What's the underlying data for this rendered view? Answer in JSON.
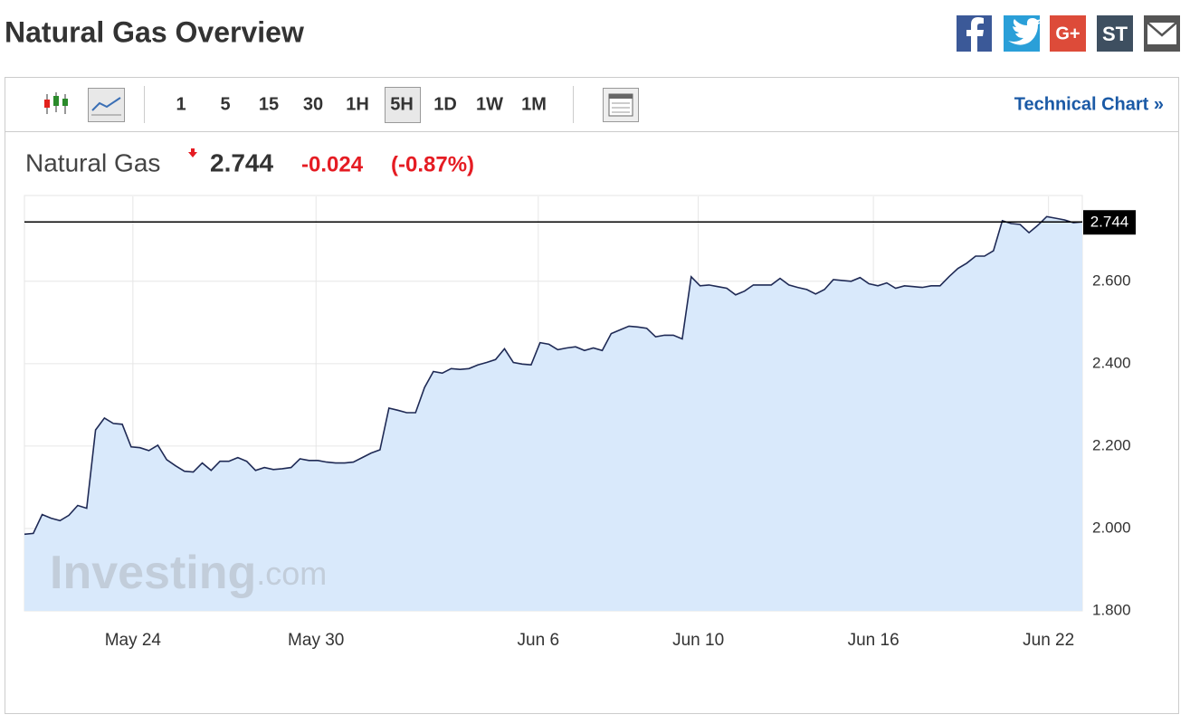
{
  "header": {
    "title": "Natural Gas Overview",
    "share": [
      "G+",
      "ST"
    ]
  },
  "toolbar": {
    "intervals": [
      "1",
      "5",
      "15",
      "30",
      "1H",
      "5H",
      "1D",
      "1W",
      "1M"
    ],
    "link": "Technical Chart »"
  },
  "quote": {
    "name": "Natural Gas",
    "price": 2.744,
    "change": -0.024,
    "change_pct": "(-0.87%)"
  },
  "chart_data": {
    "type": "area",
    "values": [
      1.986,
      1.988,
      2.034,
      2.025,
      2.019,
      2.032,
      2.056,
      2.049,
      2.239,
      2.268,
      2.255,
      2.253,
      2.198,
      2.196,
      2.189,
      2.202,
      2.167,
      2.152,
      2.139,
      2.137,
      2.159,
      2.141,
      2.163,
      2.163,
      2.172,
      2.163,
      2.141,
      2.148,
      2.143,
      2.145,
      2.148,
      2.169,
      2.165,
      2.165,
      2.161,
      2.159,
      2.159,
      2.161,
      2.172,
      2.183,
      2.191,
      2.292,
      2.287,
      2.281,
      2.281,
      2.342,
      2.381,
      2.377,
      2.388,
      2.386,
      2.388,
      2.397,
      2.403,
      2.41,
      2.436,
      2.403,
      2.399,
      2.397,
      2.451,
      2.447,
      2.434,
      2.438,
      2.441,
      2.432,
      2.438,
      2.432,
      2.473,
      2.482,
      2.491,
      2.489,
      2.486,
      2.465,
      2.469,
      2.469,
      2.46,
      2.611,
      2.589,
      2.591,
      2.587,
      2.583,
      2.567,
      2.576,
      2.591,
      2.591,
      2.591,
      2.607,
      2.591,
      2.585,
      2.58,
      2.569,
      2.58,
      2.604,
      2.602,
      2.6,
      2.609,
      2.594,
      2.589,
      2.596,
      2.583,
      2.589,
      2.587,
      2.585,
      2.589,
      2.589,
      2.611,
      2.631,
      2.644,
      2.661,
      2.661,
      2.674,
      2.747,
      2.74,
      2.738,
      2.718,
      2.736,
      2.757,
      2.753,
      2.749,
      2.742,
      2.744
    ],
    "color": "#1f2a55",
    "fill": "#d9e9fb",
    "xlim": [
      0,
      119
    ],
    "xticks": [
      {
        "value": 12.2,
        "label": "May 24"
      },
      {
        "value": 32.8,
        "label": "May 30"
      },
      {
        "value": 57.8,
        "label": "Jun 6"
      },
      {
        "value": 75.8,
        "label": "Jun 10"
      },
      {
        "value": 95.5,
        "label": "Jun 16"
      },
      {
        "value": 115.2,
        "label": "Jun 22"
      }
    ],
    "ylim": [
      1.8,
      2.806
    ],
    "yticks": [
      {
        "value": 1.8,
        "label": "1.800"
      },
      {
        "value": 2.0,
        "label": "2.000"
      },
      {
        "value": 2.2,
        "label": "2.200"
      },
      {
        "value": 2.4,
        "label": "2.400"
      },
      {
        "value": 2.6,
        "label": "2.600"
      }
    ],
    "grid": true,
    "watermark": [
      "Investing",
      ".com"
    ]
  }
}
